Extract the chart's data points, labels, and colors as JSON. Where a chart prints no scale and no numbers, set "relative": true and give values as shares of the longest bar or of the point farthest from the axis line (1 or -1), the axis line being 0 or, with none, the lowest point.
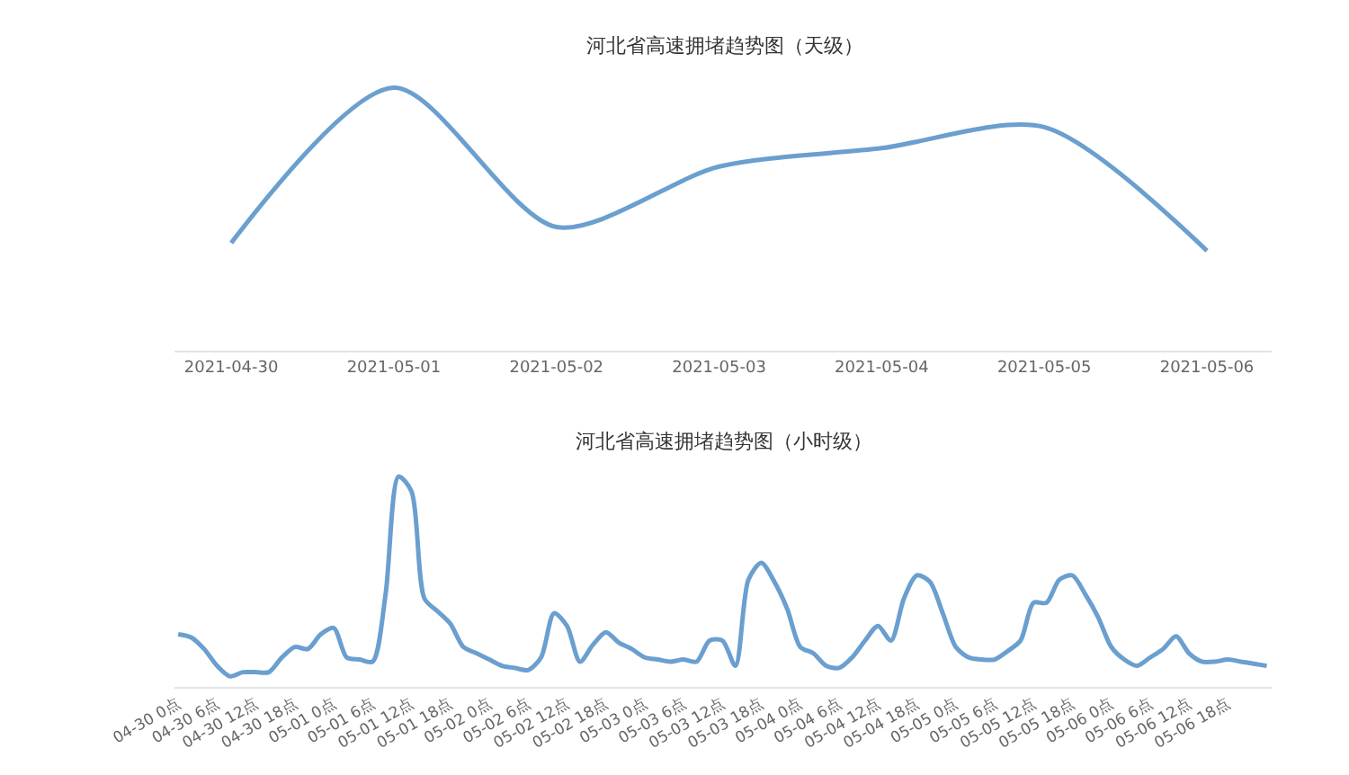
{
  "chart_data": [
    {
      "type": "line",
      "title": "河北省高速拥堵趋势图（天级）",
      "relative": true,
      "marker": "none",
      "line_style": "solid",
      "categories": [
        "2021-04-30",
        "2021-05-01",
        "2021-05-02",
        "2021-05-03",
        "2021-05-04",
        "2021-05-05",
        "2021-05-06"
      ],
      "series": [
        {
          "color": "#6a9fcf",
          "values": [
            0.41,
            1,
            0.47,
            0.7,
            0.77,
            0.85,
            0.38
          ]
        }
      ]
    },
    {
      "type": "line",
      "title": "河北省高速拥堵趋势图（小时级）",
      "relative": true,
      "marker": "none",
      "line_style": "solid",
      "categories": [
        "04-30 0点",
        null,
        null,
        "04-30 6点",
        null,
        null,
        "04-30 12点",
        null,
        null,
        "04-30 18点",
        null,
        null,
        "05-01 0点",
        null,
        null,
        "05-01 6点",
        null,
        null,
        "05-01 12点",
        null,
        null,
        "05-01 18点",
        null,
        null,
        "05-02 0点",
        null,
        null,
        "05-02 6点",
        null,
        null,
        "05-02 12点",
        null,
        null,
        "05-02 18点",
        null,
        null,
        "05-03 0点",
        null,
        null,
        "05-03 6点",
        null,
        null,
        "05-03 12点",
        null,
        null,
        "05-03 18点",
        null,
        null,
        "05-04 0点",
        null,
        null,
        "05-04 6点",
        null,
        null,
        "05-04 12点",
        null,
        null,
        "05-04 18点",
        null,
        null,
        "05-05 0点",
        null,
        null,
        "05-05 6点",
        null,
        null,
        "05-05 12点",
        null,
        null,
        "05-05 18点",
        null,
        null,
        "05-06 0点",
        null,
        null,
        "05-06 6点",
        null,
        null,
        "05-06 12点",
        null,
        null,
        "05-06 18点",
        null,
        null,
        null
      ],
      "series": [
        {
          "color": "#6a9fcf",
          "values": [
            0.25,
            0.235,
            0.18,
            0.1,
            0.05,
            0.07,
            0.07,
            0.07,
            0.14,
            0.19,
            0.18,
            0.25,
            0.28,
            0.14,
            0.13,
            0.12,
            0.44,
            1,
            0.93,
            0.42,
            0.36,
            0.3,
            0.19,
            0.16,
            0.13,
            0.1,
            0.09,
            0.08,
            0.14,
            0.35,
            0.29,
            0.12,
            0.2,
            0.26,
            0.21,
            0.18,
            0.14,
            0.13,
            0.12,
            0.13,
            0.12,
            0.22,
            0.22,
            0.1,
            0.51,
            0.59,
            0.5,
            0.37,
            0.19,
            0.16,
            0.1,
            0.09,
            0.14,
            0.22,
            0.29,
            0.22,
            0.42,
            0.53,
            0.5,
            0.35,
            0.19,
            0.14,
            0.13,
            0.13,
            0.17,
            0.22,
            0.4,
            0.4,
            0.51,
            0.53,
            0.44,
            0.33,
            0.19,
            0.13,
            0.1,
            0.14,
            0.18,
            0.24,
            0.16,
            0.12,
            0.12,
            0.13,
            0.12,
            0.11,
            0.1
          ]
        }
      ]
    }
  ]
}
